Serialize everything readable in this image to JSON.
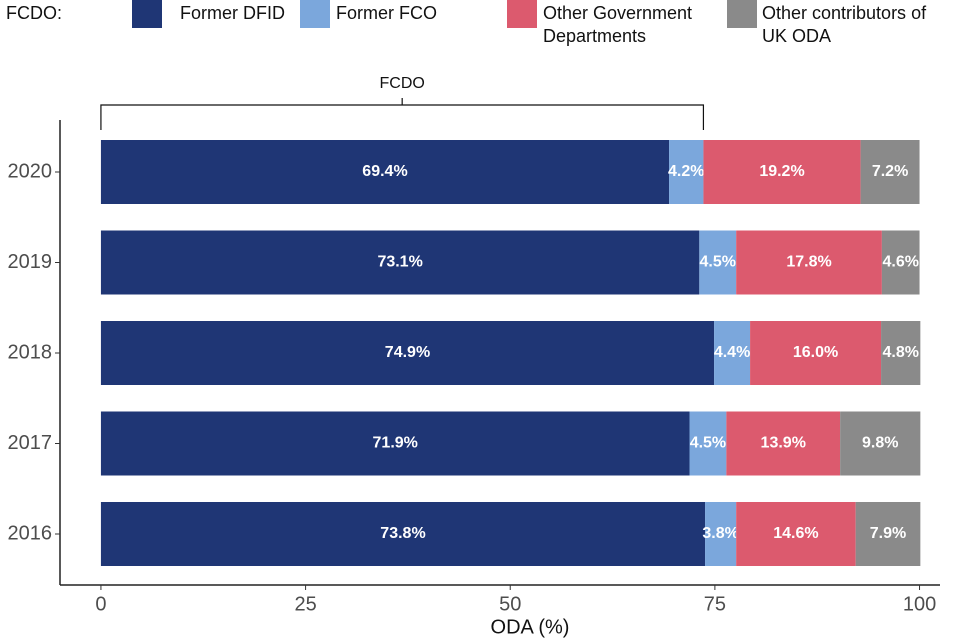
{
  "chart_data": {
    "type": "stacked-bar",
    "orientation": "horizontal",
    "legend_title": "FCDO:",
    "legend": "top",
    "annotation": "FCDO",
    "categories": [
      "2020",
      "2019",
      "2018",
      "2017",
      "2016"
    ],
    "series": [
      {
        "name": "Former DFID",
        "color": "#1f3675",
        "values": [
          69.4,
          73.1,
          74.9,
          71.9,
          73.8
        ],
        "value_labels": [
          "69.4%",
          "73.1%",
          "74.9%",
          "71.9%",
          "73.8%"
        ]
      },
      {
        "name": "Former FCO",
        "color": "#7ba7dc",
        "values": [
          4.2,
          4.5,
          4.4,
          4.5,
          3.8
        ],
        "value_labels": [
          "4.2%",
          "4.5%",
          "4.4%",
          "4.5%",
          "3.8%"
        ]
      },
      {
        "name": "Other Government Departments",
        "color": "#dc5a6e",
        "values": [
          19.2,
          17.8,
          16.0,
          13.9,
          14.6
        ],
        "value_labels": [
          "19.2%",
          "17.8%",
          "16.0%",
          "13.9%",
          "14.6%"
        ]
      },
      {
        "name": "Other contributors of UK ODA",
        "color": "#8a8a8a",
        "values": [
          7.2,
          4.6,
          4.8,
          9.8,
          7.9
        ],
        "value_labels": [
          "7.2%",
          "4.6%",
          "4.8%",
          "9.8%",
          "7.9%"
        ]
      }
    ],
    "xlabel": "ODA (%)",
    "xlim": [
      -5,
      102.5
    ],
    "xticks": [
      0,
      25,
      50,
      75,
      100
    ]
  }
}
